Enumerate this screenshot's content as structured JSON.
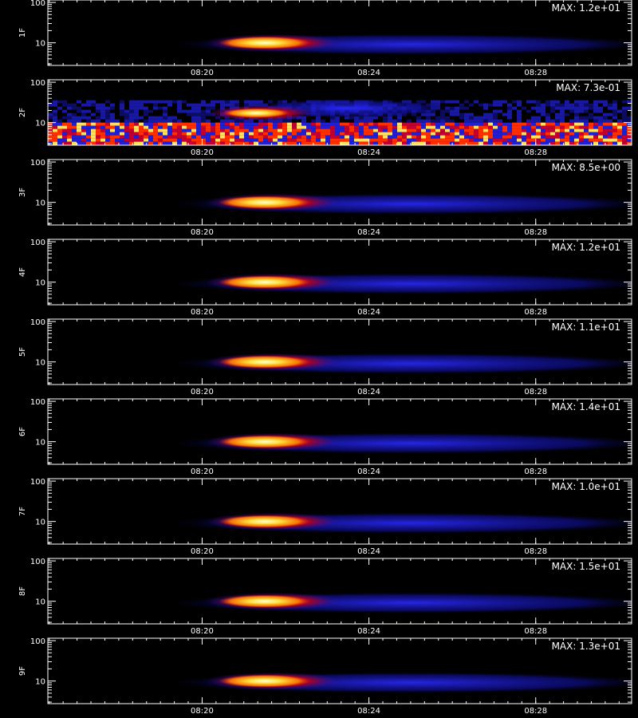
{
  "chart_data": [
    {
      "type": "heatmap",
      "ylabel": "1F",
      "annotation": "MAX: 1.2e+01",
      "log_y": true,
      "ylim": [
        2.75,
        115
      ],
      "yticks": [
        10,
        100
      ],
      "xlim": [
        16.3,
        30.3
      ],
      "xticks": [
        {
          "value": 20,
          "label": "08:20"
        },
        {
          "value": 24,
          "label": "08:24"
        },
        {
          "value": 28,
          "label": "08:28"
        }
      ]
    },
    {
      "type": "heatmap",
      "ylabel": "2F",
      "annotation": "MAX: 7.3e-01",
      "log_y": true,
      "ylim": [
        2.75,
        115
      ],
      "yticks": [
        10,
        100
      ],
      "xlim": [
        16.3,
        30.3
      ],
      "xticks": [
        {
          "value": 20,
          "label": "08:20"
        },
        {
          "value": 24,
          "label": "08:24"
        },
        {
          "value": 28,
          "label": "08:28"
        }
      ]
    },
    {
      "type": "heatmap",
      "ylabel": "3F",
      "annotation": "MAX: 8.5e+00",
      "log_y": true,
      "ylim": [
        2.75,
        115
      ],
      "yticks": [
        10,
        100
      ],
      "xlim": [
        16.3,
        30.3
      ],
      "xticks": [
        {
          "value": 20,
          "label": "08:20"
        },
        {
          "value": 24,
          "label": "08:24"
        },
        {
          "value": 28,
          "label": "08:28"
        }
      ]
    },
    {
      "type": "heatmap",
      "ylabel": "4F",
      "annotation": "MAX: 1.2e+01",
      "log_y": true,
      "ylim": [
        2.75,
        115
      ],
      "yticks": [
        10,
        100
      ],
      "xlim": [
        16.3,
        30.3
      ],
      "xticks": [
        {
          "value": 20,
          "label": "08:20"
        },
        {
          "value": 24,
          "label": "08:24"
        },
        {
          "value": 28,
          "label": "08:28"
        }
      ]
    },
    {
      "type": "heatmap",
      "ylabel": "5F",
      "annotation": "MAX: 1.1e+01",
      "log_y": true,
      "ylim": [
        2.75,
        115
      ],
      "yticks": [
        10,
        100
      ],
      "xlim": [
        16.3,
        30.3
      ],
      "xticks": [
        {
          "value": 20,
          "label": "08:20"
        },
        {
          "value": 24,
          "label": "08:24"
        },
        {
          "value": 28,
          "label": "08:28"
        }
      ]
    },
    {
      "type": "heatmap",
      "ylabel": "6F",
      "annotation": "MAX: 1.4e+01",
      "log_y": true,
      "ylim": [
        2.75,
        115
      ],
      "yticks": [
        10,
        100
      ],
      "xlim": [
        16.3,
        30.3
      ],
      "xticks": [
        {
          "value": 20,
          "label": "08:20"
        },
        {
          "value": 24,
          "label": "08:24"
        },
        {
          "value": 28,
          "label": "08:28"
        }
      ]
    },
    {
      "type": "heatmap",
      "ylabel": "7F",
      "annotation": "MAX: 1.0e+01",
      "log_y": true,
      "ylim": [
        2.75,
        115
      ],
      "yticks": [
        10,
        100
      ],
      "xlim": [
        16.3,
        30.3
      ],
      "xticks": [
        {
          "value": 20,
          "label": "08:20"
        },
        {
          "value": 24,
          "label": "08:24"
        },
        {
          "value": 28,
          "label": "08:28"
        }
      ]
    },
    {
      "type": "heatmap",
      "ylabel": "8F",
      "annotation": "MAX: 1.5e+01",
      "log_y": true,
      "ylim": [
        2.75,
        115
      ],
      "yticks": [
        10,
        100
      ],
      "xlim": [
        16.3,
        30.3
      ],
      "xticks": [
        {
          "value": 20,
          "label": "08:20"
        },
        {
          "value": 24,
          "label": "08:24"
        },
        {
          "value": 28,
          "label": "08:28"
        }
      ]
    },
    {
      "type": "heatmap",
      "ylabel": "9F",
      "annotation": "MAX: 1.3e+01",
      "log_y": true,
      "ylim": [
        2.75,
        115
      ],
      "yticks": [
        10,
        100
      ],
      "xlim": [
        16.3,
        30.3
      ],
      "xticks": [
        {
          "value": 20,
          "label": "08:20"
        },
        {
          "value": 24,
          "label": "08:24"
        },
        {
          "value": 28,
          "label": "08:28"
        }
      ]
    }
  ]
}
